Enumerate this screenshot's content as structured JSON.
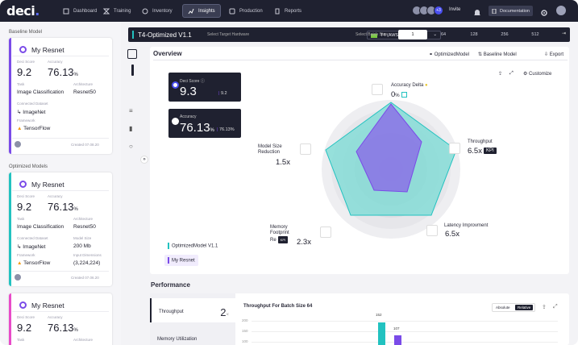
{
  "brand": "deci",
  "nav": [
    {
      "label": "Dashboard"
    },
    {
      "label": "Training"
    },
    {
      "label": "Inventory"
    },
    {
      "label": "Insights"
    },
    {
      "label": "Production"
    },
    {
      "label": "Reports"
    }
  ],
  "header": {
    "extra_members": "+3",
    "invite": "Invite",
    "notifications": "1",
    "documentation": "Documentation"
  },
  "sidebar": {
    "baseline_title": "Baseline Model",
    "optimized_title": "Optimized Models",
    "baseline": {
      "name": "My Resnet",
      "deci_score_label": "Deci Score",
      "deci_score": "9.2",
      "accuracy_label": "Accuracy",
      "accuracy": "76.13",
      "accuracy_unit": "%",
      "task_label": "Task",
      "task": "Image Classification",
      "arch_label": "Architecture",
      "arch": "Resnet50",
      "dataset_label": "Connected Dataset",
      "dataset": "ImageNet",
      "framework_label": "Framework",
      "framework": "TensorFlow",
      "created": "Created 07.08.20"
    },
    "opt1": {
      "name": "My Resnet",
      "deci_score_label": "Deci Score",
      "deci_score": "9.2",
      "accuracy_label": "Accuracy",
      "accuracy": "76.13",
      "accuracy_unit": "%",
      "task_label": "Task",
      "task": "Image Classification",
      "arch_label": "Architecture",
      "arch": "Resnet50",
      "dataset_label": "Connected Dataset",
      "dataset": "ImageNet",
      "size_label": "Model Size",
      "size": "200 Mb",
      "framework_label": "Framework",
      "framework": "TensorFlow",
      "dims_label": "Input Dimensions",
      "dims": "(3,224,224)",
      "created": "Created 07.06.20"
    },
    "opt2": {
      "name": "My Resnet",
      "deci_score_label": "Deci Score",
      "deci_score": "9.2",
      "accuracy_label": "Accuracy",
      "accuracy": "76.13",
      "accuracy_unit": "%",
      "task_label": "Task",
      "arch_label": "Architecture"
    }
  },
  "hwbar": {
    "title": "T4-Optimized V1.1",
    "hw_label": "Select Target Hardware",
    "hw_value": "T4 (AWS G4...",
    "batch_label": "Select Batch Size",
    "batch_sizes": [
      "1",
      "64",
      "128",
      "256",
      "512"
    ]
  },
  "overview": {
    "title": "Overview",
    "legend_opt": "OptimizedModel",
    "legend_base": "Baseline Model",
    "export": "Export",
    "customize": "Customize",
    "deci_label": "Deci Score",
    "deci_value": "9.3",
    "deci_small": "9.2",
    "acc_label": "Accuracy",
    "acc_value": "76.13",
    "acc_unit": "%",
    "acc_small": "76.13",
    "axes": {
      "acc_delta": {
        "label": "Accuracy Delta",
        "value": "0",
        "unit": "%"
      },
      "throughput": {
        "label": "Throughput",
        "value": "6.5x"
      },
      "latency": {
        "label": "Latency Improvment",
        "value": "6.5x"
      },
      "memory": {
        "label1": "Memory",
        "label2": "Footprint",
        "label3": "Re",
        "value": "2.3x"
      },
      "size": {
        "label1": "Model Size",
        "label2": "Reduction",
        "value": "1.5x"
      }
    },
    "kpi": "KPI",
    "legend1": "OptimizedModel V1.1",
    "legend2": "My Resnet",
    "colors": {
      "optimized": "#22c2c0",
      "baseline": "#7a4be8"
    }
  },
  "performance": {
    "title": "Performance",
    "tabs": [
      {
        "label": "Throughput",
        "value": "2",
        "unit": "×"
      },
      {
        "label": "Memory Utilization"
      }
    ],
    "chart_title": "Throughput For Batch Size 64",
    "toggle": [
      "Absolute",
      "Relative"
    ],
    "y_ticks": [
      "200",
      "150",
      "100"
    ],
    "bar_labels": [
      "152",
      "107"
    ]
  }
}
